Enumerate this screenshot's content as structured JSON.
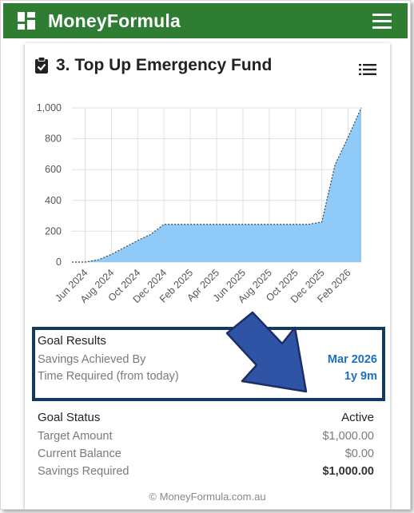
{
  "app": {
    "title": "MoneyFormula"
  },
  "card": {
    "title": "3. Top Up Emergency Fund"
  },
  "goal_results": {
    "heading": "Goal Results",
    "achieved_label": "Savings Achieved By",
    "achieved_value": "Mar 2026",
    "time_label": "Time Required (from today)",
    "time_value": "1y 9m"
  },
  "goal_status": {
    "heading": "Goal Status",
    "status_value": "Active",
    "target_label": "Target Amount",
    "target_value": "$1,000.00",
    "balance_label": "Current Balance",
    "balance_value": "$0.00",
    "required_label": "Savings Required",
    "required_value": "$1,000.00"
  },
  "footer": {
    "copyright": "© MoneyFormula.com.au"
  },
  "colors": {
    "header": "#2e7d32",
    "fill": "#90caf9",
    "accent": "#1e6fc0",
    "box_border": "#123a5e",
    "arrow": "#2f53a5"
  },
  "chart_data": {
    "type": "area",
    "y_ticks": [
      "0",
      "200",
      "400",
      "600",
      "800",
      "1,000"
    ],
    "ylim": [
      0,
      1000
    ],
    "x_ticks": [
      "Jun 2024",
      "Aug 2024",
      "Oct 2024",
      "Dec 2024",
      "Feb 2025",
      "Apr 2025",
      "Jun 2025",
      "Aug 2025",
      "Oct 2025",
      "Dec 2025",
      "Feb 2026"
    ],
    "x": [
      "May 2024",
      "Jun 2024",
      "Jul 2024",
      "Aug 2024",
      "Sep 2024",
      "Oct 2024",
      "Nov 2024",
      "Dec 2024",
      "Jan 2025",
      "Feb 2025",
      "Mar 2025",
      "Apr 2025",
      "May 2025",
      "Jun 2025",
      "Jul 2025",
      "Aug 2025",
      "Sep 2025",
      "Oct 2025",
      "Nov 2025",
      "Dec 2025",
      "Jan 2026",
      "Feb 2026",
      "Mar 2026"
    ],
    "values": [
      0,
      0,
      15,
      50,
      95,
      140,
      180,
      245,
      245,
      245,
      245,
      245,
      245,
      245,
      245,
      245,
      245,
      245,
      245,
      260,
      630,
      810,
      1000
    ],
    "grid": true
  }
}
